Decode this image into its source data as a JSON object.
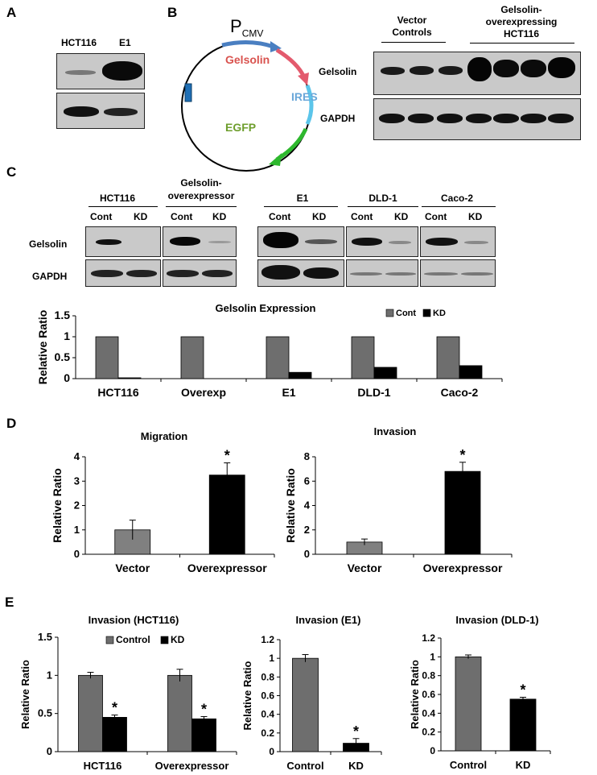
{
  "panels": {
    "A": {
      "letter": "A",
      "lanes": [
        "HCT116",
        "E1"
      ],
      "strength": [
        {
          "row": 1,
          "lanes": [
            0.35,
            1.0
          ]
        },
        {
          "row": 2,
          "lanes": [
            0.8,
            0.65
          ]
        }
      ]
    },
    "B": {
      "letter": "B",
      "plasmid": {
        "promoter": "P",
        "promoter_sub": "CMV",
        "gene": "Gelsolin",
        "ires": "IRES",
        "reporter": "EGFP"
      },
      "groups": [
        "Vector Controls",
        "Gelsolin- overexpressing HCT116"
      ],
      "group_lines": [
        "Vector",
        "Controls",
        "Gelsolin-",
        "overexpressing",
        "HCT116"
      ],
      "rows": [
        "Gelsolin",
        "GAPDH"
      ]
    },
    "C": {
      "letter": "C",
      "groups": [
        "HCT116",
        "Gelsolin-overexpressor",
        "E1",
        "DLD-1",
        "Caco-2"
      ],
      "group_lines": [
        "HCT116",
        "Gelsolin-",
        "overexpressor",
        "E1",
        "DLD-1",
        "Caco-2"
      ],
      "lane_labels": [
        "Cont",
        "KD"
      ],
      "rows": [
        "Gelsolin",
        "GAPDH"
      ]
    },
    "D": {
      "letter": "D"
    },
    "E": {
      "letter": "E"
    }
  },
  "chart_data": [
    {
      "id": "C-expression",
      "type": "bar",
      "title": "Gelsolin Expression",
      "ylabel": "Relative Ratio",
      "xlabel": "",
      "categories": [
        "HCT116",
        "Overexp",
        "E1",
        "DLD-1",
        "Caco-2"
      ],
      "series": [
        {
          "name": "Cont",
          "values": [
            1,
            1,
            1,
            1,
            1
          ],
          "color": "#6e6e6e"
        },
        {
          "name": "KD",
          "values": [
            0.02,
            0.0,
            0.15,
            0.27,
            0.31
          ],
          "color": "#000000"
        }
      ],
      "ylim": [
        0,
        1.5
      ],
      "yticks": [
        "0",
        "0.5",
        "1",
        "1.5"
      ],
      "legend": "top-right"
    },
    {
      "id": "D-migration",
      "type": "bar",
      "title": "Migration",
      "ylabel": "Relative Ratio",
      "xlabel": "",
      "categories": [
        "Vector",
        "Overexpressor"
      ],
      "values": [
        1.0,
        3.25
      ],
      "errors": [
        0.4,
        0.5
      ],
      "colors": [
        "#808080",
        "#000000"
      ],
      "annotations": [
        "",
        "*"
      ],
      "ylim": [
        0,
        4
      ],
      "yticks": [
        "0",
        "1",
        "2",
        "3",
        "4"
      ]
    },
    {
      "id": "D-invasion",
      "type": "bar",
      "title": "Invasion",
      "ylabel": "Relative Ratio",
      "xlabel": "",
      "categories": [
        "Vector",
        "Overexpressor"
      ],
      "values": [
        1.0,
        6.8
      ],
      "errors": [
        0.25,
        0.75
      ],
      "colors": [
        "#808080",
        "#000000"
      ],
      "annotations": [
        "",
        "*"
      ],
      "ylim": [
        0,
        8
      ],
      "yticks": [
        "0",
        "2",
        "4",
        "6",
        "8"
      ]
    },
    {
      "id": "E-hct116",
      "type": "bar",
      "title": "Invasion (HCT116)",
      "ylabel": "Relative Ratio",
      "xlabel": "",
      "categories": [
        "HCT116",
        "Overexpressor"
      ],
      "series": [
        {
          "name": "Control",
          "values": [
            1.0,
            1.0
          ],
          "errors": [
            0.04,
            0.08
          ],
          "color": "#6e6e6e"
        },
        {
          "name": "KD",
          "values": [
            0.45,
            0.43
          ],
          "errors": [
            0.03,
            0.03
          ],
          "color": "#000000",
          "annotations": [
            "*",
            "*"
          ]
        }
      ],
      "ylim": [
        0,
        1.5
      ],
      "yticks": [
        "0",
        "0.5",
        "1",
        "1.5"
      ],
      "legend": "top-center"
    },
    {
      "id": "E-e1",
      "type": "bar",
      "title": "Invasion (E1)",
      "ylabel": "Relative Ratio",
      "xlabel": "",
      "categories": [
        "Control",
        "KD"
      ],
      "values": [
        1.0,
        0.09
      ],
      "errors": [
        0.04,
        0.05
      ],
      "colors": [
        "#6e6e6e",
        "#000000"
      ],
      "annotations": [
        "",
        "*"
      ],
      "ylim": [
        0,
        1.2
      ],
      "yticks": [
        "0",
        "0.2",
        "0.4",
        "0.6",
        "0.8",
        "1",
        "1.2"
      ]
    },
    {
      "id": "E-dld1",
      "type": "bar",
      "title": "Invasion (DLD-1)",
      "ylabel": "Relative Ratio",
      "xlabel": "",
      "categories": [
        "Control",
        "KD"
      ],
      "values": [
        1.0,
        0.55
      ],
      "errors": [
        0.02,
        0.02
      ],
      "colors": [
        "#6e6e6e",
        "#000000"
      ],
      "annotations": [
        "",
        "*"
      ],
      "ylim": [
        0,
        1.2
      ],
      "yticks": [
        "0",
        "0.2",
        "0.4",
        "0.6",
        "0.8",
        "1",
        "1.2"
      ]
    }
  ]
}
